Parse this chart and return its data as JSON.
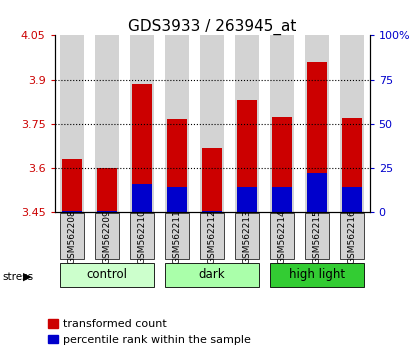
{
  "title": "GDS3933 / 263945_at",
  "samples": [
    "GSM562208",
    "GSM562209",
    "GSM562210",
    "GSM562211",
    "GSM562212",
    "GSM562213",
    "GSM562214",
    "GSM562215",
    "GSM562216"
  ],
  "red_values": [
    3.63,
    3.6,
    3.885,
    3.765,
    3.67,
    3.83,
    3.775,
    3.96,
    3.77
  ],
  "blue_values": [
    3.455,
    3.455,
    3.545,
    3.535,
    3.455,
    3.535,
    3.535,
    3.585,
    3.535
  ],
  "y_min": 3.45,
  "y_max": 4.05,
  "y_ticks_left": [
    3.45,
    3.6,
    3.75,
    3.9,
    4.05
  ],
  "y_ticks_right": [
    0,
    25,
    50,
    75,
    100
  ],
  "groups": [
    {
      "label": "control",
      "start": 0,
      "end": 3,
      "color": "#ccffcc"
    },
    {
      "label": "dark",
      "start": 3,
      "end": 6,
      "color": "#aaffaa"
    },
    {
      "label": "high light",
      "start": 6,
      "end": 9,
      "color": "#33cc33"
    }
  ],
  "bar_width": 0.55,
  "red_color": "#cc0000",
  "blue_color": "#0000cc",
  "bar_bg_color": "#d3d3d3",
  "left_tick_color": "#cc0000",
  "right_tick_color": "#0000cc",
  "title_fontsize": 11,
  "tick_fontsize": 8,
  "legend_fontsize": 8,
  "sample_label_fontsize": 6.5,
  "group_label_fontsize": 8.5,
  "dotted_ticks": [
    3.6,
    3.75,
    3.9
  ]
}
